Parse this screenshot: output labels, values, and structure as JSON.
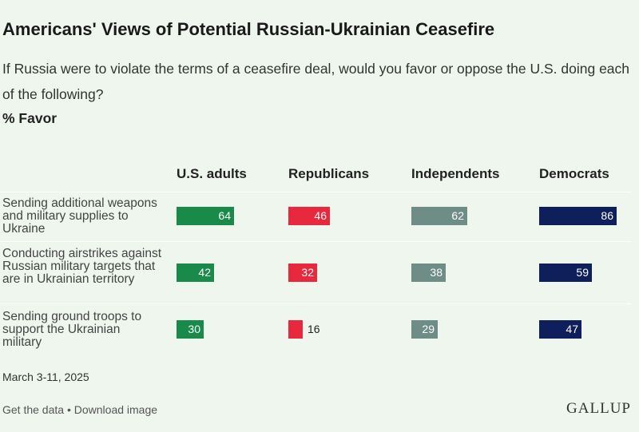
{
  "title": "Americans' Views of Potential Russian-Ukrainian Ceasefire",
  "subtitle": "If Russia were to violate the terms of a ceasefire deal, would you favor or oppose the U.S. doing each of the following?",
  "measure": "% Favor",
  "date": "March 3-11, 2025",
  "footer": {
    "get_data": "Get the data",
    "separator": "•",
    "download": "Download image",
    "logo": "GALLUP"
  },
  "colors": {
    "U.S. adults": "#1a8a4a",
    "Republicans": "#e8283c",
    "Independents": "#6e8d86",
    "Democrats": "#0e1f5c"
  },
  "chart_data": {
    "type": "bar",
    "categories": [
      "Sending additional weapons and military supplies to Ukraine",
      "Conducting airstrikes against Russian military targets that are in Ukrainian territory",
      "Sending ground troops to support the Ukrainian military"
    ],
    "series": [
      {
        "name": "U.S. adults",
        "values": [
          64,
          42,
          30
        ]
      },
      {
        "name": "Republicans",
        "values": [
          46,
          32,
          16
        ]
      },
      {
        "name": "Independents",
        "values": [
          62,
          38,
          29
        ]
      },
      {
        "name": "Democrats",
        "values": [
          86,
          59,
          47
        ]
      }
    ]
  }
}
